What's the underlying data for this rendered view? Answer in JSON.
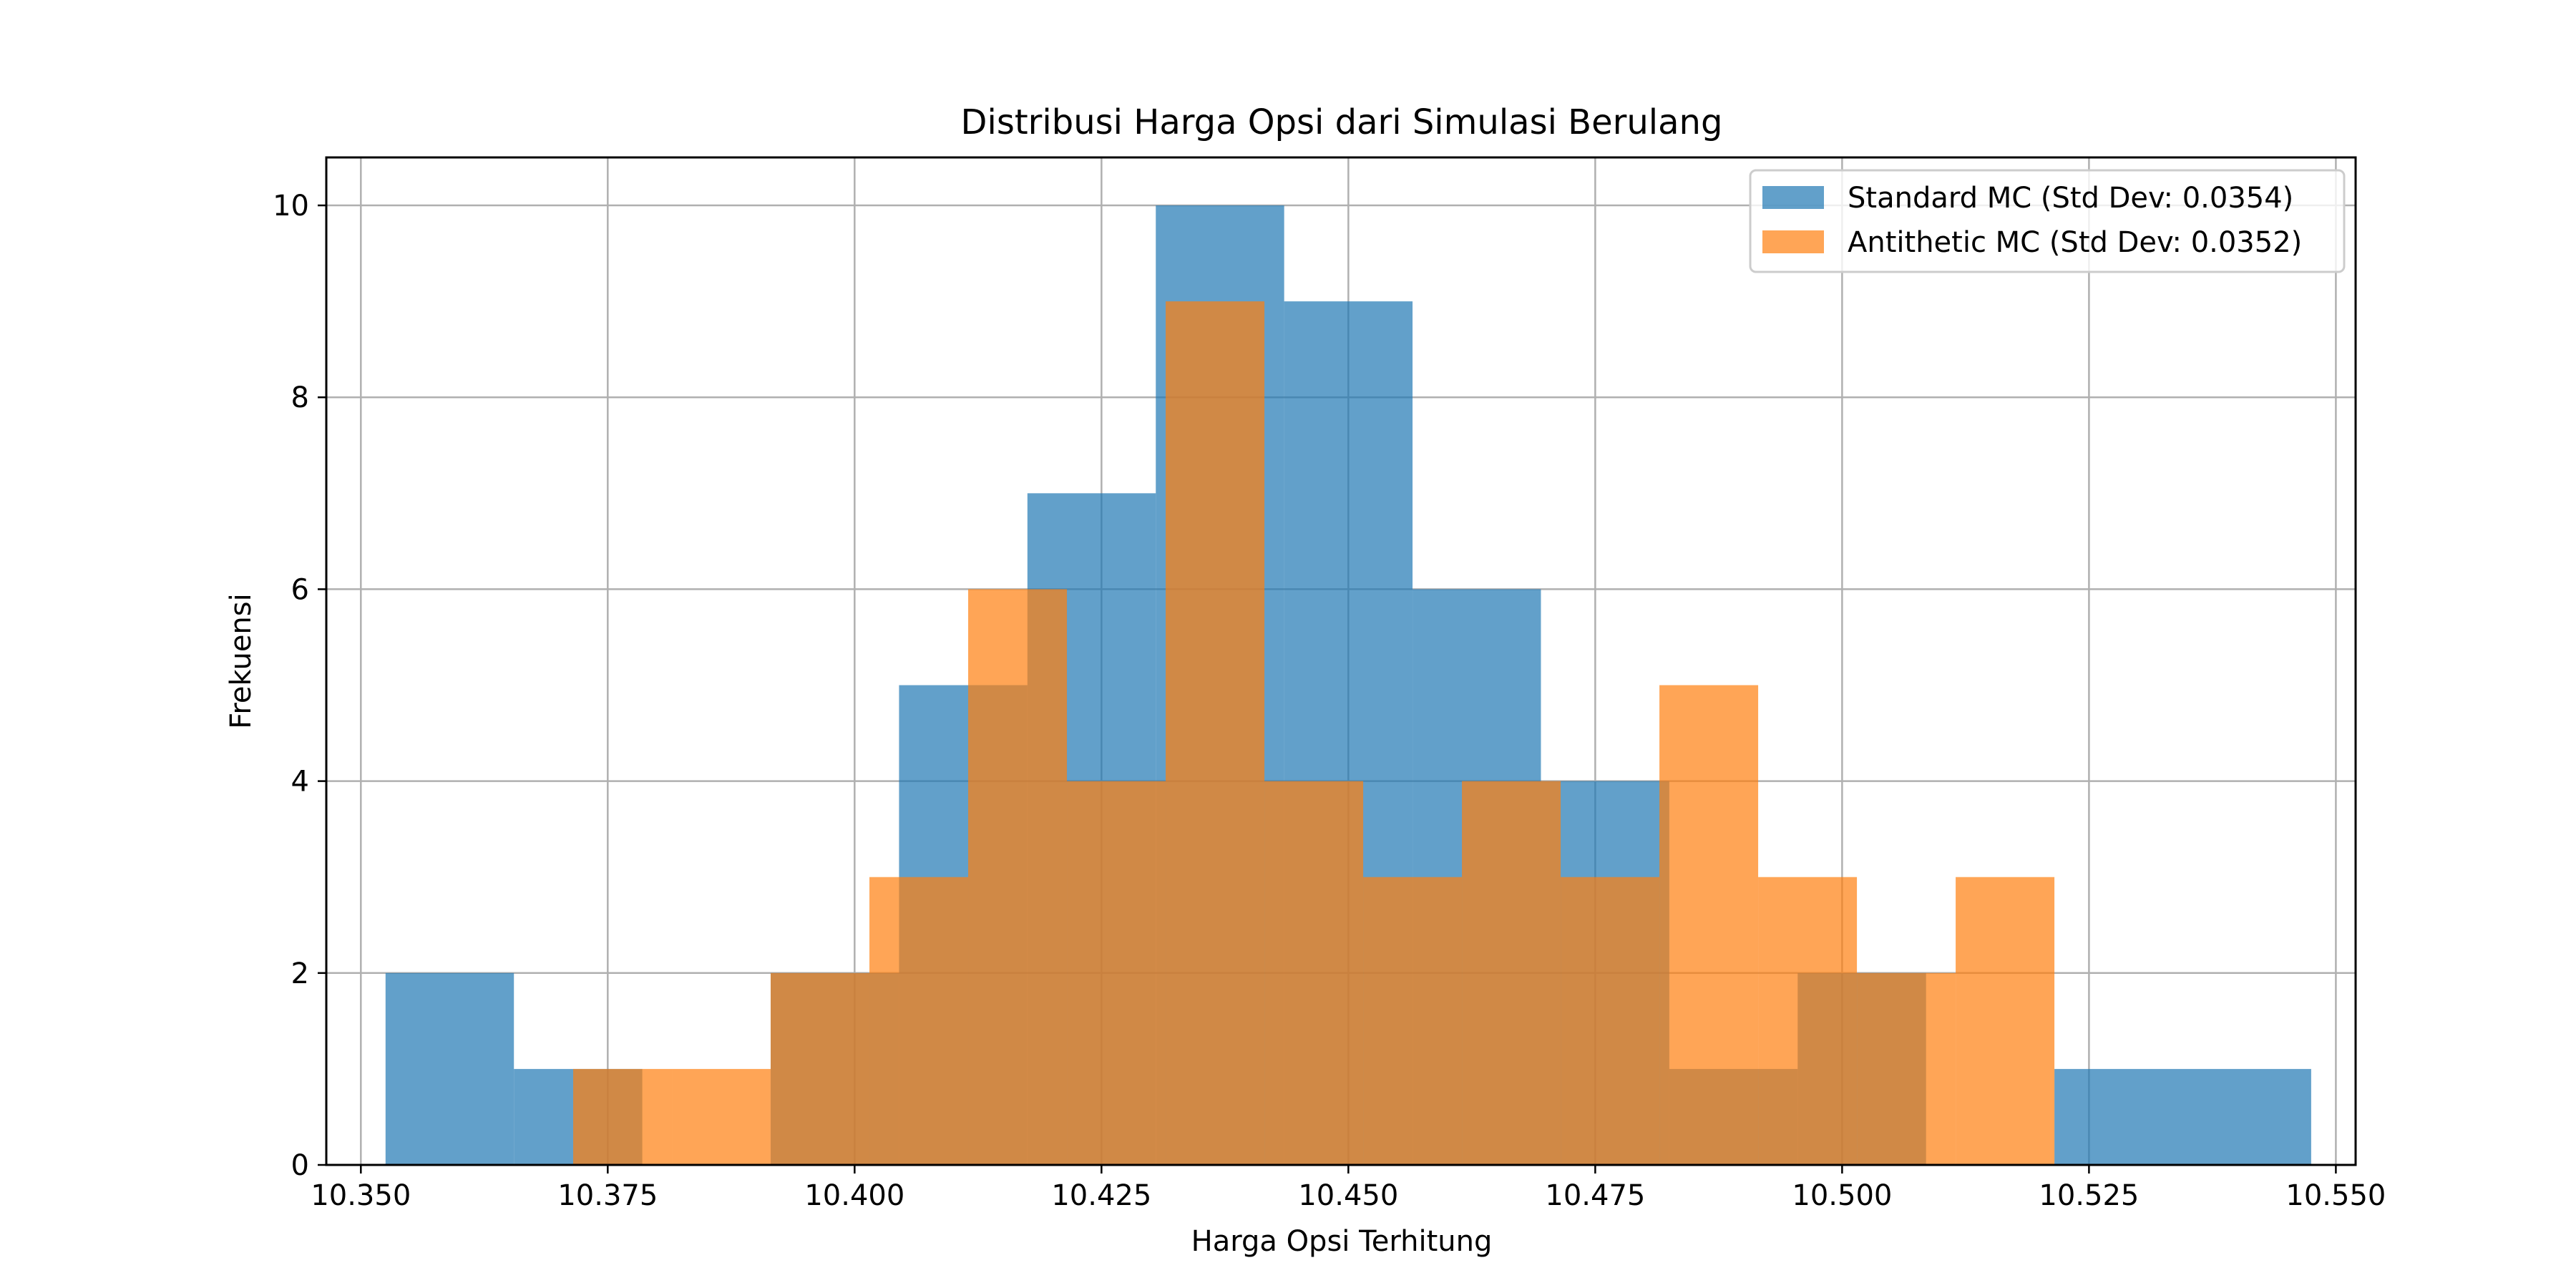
{
  "chart_data": {
    "type": "bar",
    "subtype": "histogram",
    "title": "Distribusi Harga Opsi dari Simulasi Berulang",
    "xlabel": "Harga Opsi Terhitung",
    "ylabel": "Frekuensi",
    "xlim": [
      10.3465,
      10.552
    ],
    "ylim": [
      0,
      10.5
    ],
    "x_ticks": [
      "10.350",
      "10.375",
      "10.400",
      "10.425",
      "10.450",
      "10.475",
      "10.500",
      "10.525",
      "10.550"
    ],
    "y_ticks": [
      "0",
      "2",
      "4",
      "6",
      "8",
      "10"
    ],
    "grid": true,
    "legend_position": "top-right",
    "series": [
      {
        "name": "Standard MC (Std Dev: 0.0354)",
        "color": "#1f77b4",
        "opacity": 0.7,
        "bins": [
          {
            "x0": 10.3525,
            "x1": 10.3655,
            "count": 2
          },
          {
            "x0": 10.3655,
            "x1": 10.3785,
            "count": 1
          },
          {
            "x0": 10.3785,
            "x1": 10.3915,
            "count": 0
          },
          {
            "x0": 10.3915,
            "x1": 10.4045,
            "count": 2
          },
          {
            "x0": 10.4045,
            "x1": 10.4175,
            "count": 5
          },
          {
            "x0": 10.4175,
            "x1": 10.4305,
            "count": 7
          },
          {
            "x0": 10.4305,
            "x1": 10.4435,
            "count": 10
          },
          {
            "x0": 10.4435,
            "x1": 10.4565,
            "count": 9
          },
          {
            "x0": 10.4565,
            "x1": 10.4695,
            "count": 6
          },
          {
            "x0": 10.4695,
            "x1": 10.4825,
            "count": 4
          },
          {
            "x0": 10.4825,
            "x1": 10.4955,
            "count": 1
          },
          {
            "x0": 10.4955,
            "x1": 10.5085,
            "count": 2
          },
          {
            "x0": 10.5085,
            "x1": 10.5215,
            "count": 0
          },
          {
            "x0": 10.5215,
            "x1": 10.5345,
            "count": 1
          },
          {
            "x0": 10.5345,
            "x1": 10.5475,
            "count": 1
          }
        ]
      },
      {
        "name": "Antithetic MC (Std Dev: 0.0352)",
        "color": "#ff7f0e",
        "opacity": 0.7,
        "bins": [
          {
            "x0": 10.3715,
            "x1": 10.3815,
            "count": 1
          },
          {
            "x0": 10.3815,
            "x1": 10.3915,
            "count": 1
          },
          {
            "x0": 10.3915,
            "x1": 10.4015,
            "count": 2
          },
          {
            "x0": 10.4015,
            "x1": 10.4115,
            "count": 3
          },
          {
            "x0": 10.4115,
            "x1": 10.4215,
            "count": 6
          },
          {
            "x0": 10.4215,
            "x1": 10.4315,
            "count": 4
          },
          {
            "x0": 10.4315,
            "x1": 10.4415,
            "count": 9
          },
          {
            "x0": 10.4415,
            "x1": 10.4515,
            "count": 4
          },
          {
            "x0": 10.4515,
            "x1": 10.4615,
            "count": 3
          },
          {
            "x0": 10.4615,
            "x1": 10.4715,
            "count": 4
          },
          {
            "x0": 10.4715,
            "x1": 10.4815,
            "count": 3
          },
          {
            "x0": 10.4815,
            "x1": 10.4915,
            "count": 5
          },
          {
            "x0": 10.4915,
            "x1": 10.5015,
            "count": 3
          },
          {
            "x0": 10.5015,
            "x1": 10.5115,
            "count": 2
          },
          {
            "x0": 10.5115,
            "x1": 10.5215,
            "count": 3
          }
        ]
      }
    ]
  }
}
